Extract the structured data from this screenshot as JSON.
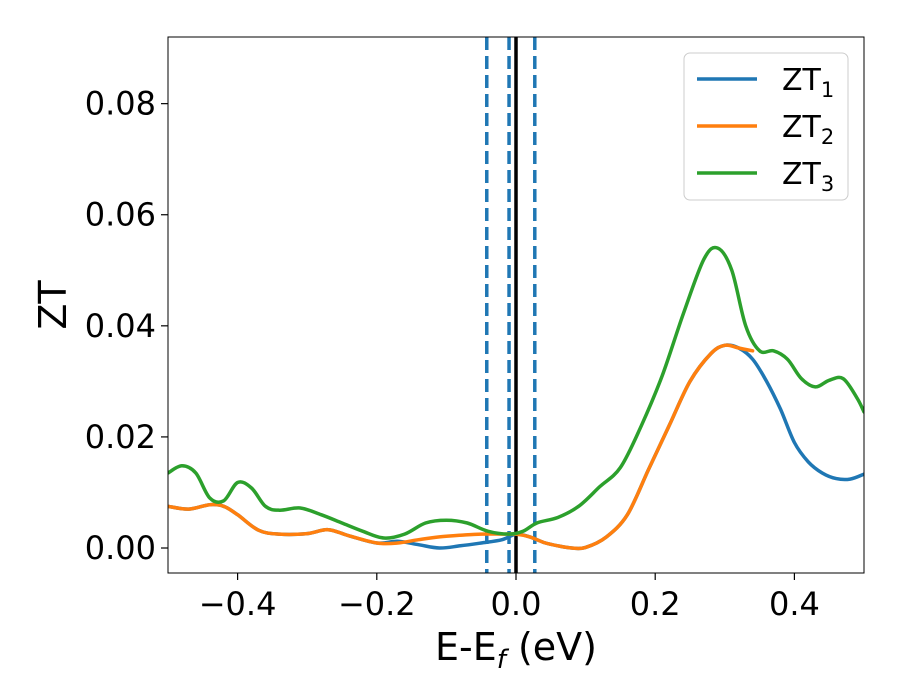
{
  "chart_data": {
    "type": "line",
    "title": "",
    "xlabel": "E-E",
    "xlabel_sub": "f",
    "xlabel_unit": " (eV)",
    "ylabel": "ZT",
    "xlim": [
      -0.5,
      0.5
    ],
    "ylim": [
      -0.0045,
      0.092
    ],
    "xticks": [
      -0.4,
      -0.2,
      0.0,
      0.2,
      0.4
    ],
    "xtick_labels": [
      "−0.4",
      "−0.2",
      "0.0",
      "0.2",
      "0.4"
    ],
    "yticks": [
      0.0,
      0.02,
      0.04,
      0.06,
      0.08
    ],
    "ytick_labels": [
      "0.00",
      "0.02",
      "0.04",
      "0.06",
      "0.08"
    ],
    "grid": false,
    "legend_position": "top-right",
    "vlines": [
      {
        "x": 0.0,
        "style": "solid",
        "color": "#000000"
      },
      {
        "x": -0.042,
        "style": "dashed",
        "color": "#1f77b4"
      },
      {
        "x": -0.01,
        "style": "dashed",
        "color": "#1f77b4"
      },
      {
        "x": 0.027,
        "style": "dashed",
        "color": "#1f77b4"
      }
    ],
    "series": [
      {
        "name": "ZT",
        "sub": "1",
        "color": "#1f77b4",
        "x": [
          -0.5,
          -0.47,
          -0.44,
          -0.42,
          -0.4,
          -0.37,
          -0.34,
          -0.3,
          -0.27,
          -0.24,
          -0.2,
          -0.17,
          -0.14,
          -0.11,
          -0.08,
          -0.05,
          -0.02,
          0.0,
          0.02,
          0.04,
          0.06,
          0.08,
          0.1,
          0.13,
          0.16,
          0.19,
          0.22,
          0.25,
          0.28,
          0.3,
          0.32,
          0.34,
          0.36,
          0.38,
          0.4,
          0.42,
          0.44,
          0.46,
          0.48,
          0.5
        ],
        "y": [
          0.0075,
          0.007,
          0.0078,
          0.0075,
          0.006,
          0.0032,
          0.0025,
          0.0026,
          0.0033,
          0.0022,
          0.0009,
          0.0012,
          0.0006,
          0.0,
          0.0004,
          0.0009,
          0.0015,
          0.0025,
          0.002,
          0.001,
          0.0004,
          0.0,
          0.0001,
          0.002,
          0.006,
          0.014,
          0.022,
          0.03,
          0.035,
          0.0365,
          0.036,
          0.034,
          0.03,
          0.025,
          0.019,
          0.0155,
          0.0135,
          0.0125,
          0.0124,
          0.0133
        ]
      },
      {
        "name": "ZT",
        "sub": "2",
        "color": "#ff7f0e",
        "x": [
          -0.5,
          -0.47,
          -0.44,
          -0.42,
          -0.4,
          -0.37,
          -0.34,
          -0.3,
          -0.27,
          -0.24,
          -0.2,
          -0.17,
          -0.14,
          -0.11,
          -0.08,
          -0.05,
          -0.02,
          0.0,
          0.02,
          0.04,
          0.06,
          0.08,
          0.1,
          0.13,
          0.16,
          0.19,
          0.22,
          0.25,
          0.28,
          0.3,
          0.32,
          0.34
        ],
        "y": [
          0.0075,
          0.007,
          0.0078,
          0.0075,
          0.006,
          0.0032,
          0.0025,
          0.0026,
          0.0033,
          0.0022,
          0.0009,
          0.0009,
          0.0015,
          0.002,
          0.0023,
          0.0025,
          0.0025,
          0.0025,
          0.002,
          0.001,
          0.0004,
          0.0,
          0.0001,
          0.002,
          0.006,
          0.014,
          0.022,
          0.03,
          0.035,
          0.0365,
          0.036,
          0.0355
        ]
      },
      {
        "name": "ZT",
        "sub": "3",
        "color": "#2ca02c",
        "x": [
          -0.5,
          -0.48,
          -0.46,
          -0.44,
          -0.42,
          -0.4,
          -0.38,
          -0.36,
          -0.34,
          -0.31,
          -0.28,
          -0.25,
          -0.22,
          -0.19,
          -0.16,
          -0.13,
          -0.1,
          -0.07,
          -0.04,
          -0.01,
          0.01,
          0.03,
          0.06,
          0.09,
          0.12,
          0.15,
          0.18,
          0.21,
          0.24,
          0.27,
          0.29,
          0.31,
          0.33,
          0.35,
          0.37,
          0.39,
          0.41,
          0.43,
          0.45,
          0.47,
          0.49,
          0.5
        ],
        "y": [
          0.0135,
          0.0148,
          0.0135,
          0.009,
          0.0085,
          0.0118,
          0.0108,
          0.0075,
          0.0068,
          0.0072,
          0.006,
          0.0045,
          0.003,
          0.0018,
          0.0025,
          0.0045,
          0.005,
          0.0045,
          0.003,
          0.0025,
          0.003,
          0.0045,
          0.0055,
          0.0075,
          0.011,
          0.0145,
          0.022,
          0.031,
          0.042,
          0.052,
          0.054,
          0.05,
          0.04,
          0.0355,
          0.0355,
          0.034,
          0.0305,
          0.029,
          0.0302,
          0.0305,
          0.027,
          0.0245
        ]
      }
    ]
  }
}
